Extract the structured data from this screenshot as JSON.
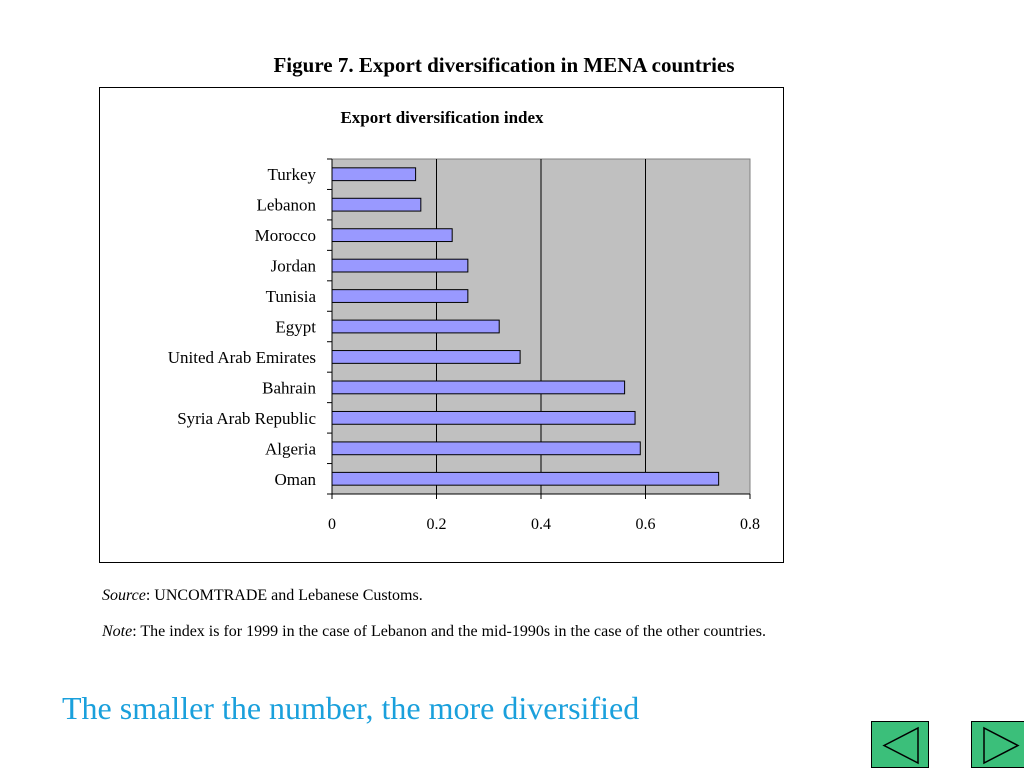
{
  "figure_title": "Figure 7.  Export diversification in MENA countries",
  "source": {
    "label": "Source",
    "text": ":  UNCOMTRADE and Lebanese Customs."
  },
  "note": {
    "label": "Note",
    "text": ": The index is for 1999 in the case of Lebanon and the mid-1990s in the case of the other countries."
  },
  "caption": "The smaller the number, the more diversified",
  "colors": {
    "bar_fill": "#9999ff",
    "plot_bg": "#c0c0c0",
    "caption": "#1aa0dc",
    "nav_button": "#3bbf7a"
  },
  "nav": {
    "prev_icon": "left-triangle-icon",
    "next_icon": "right-triangle-icon"
  },
  "chart_data": {
    "type": "bar",
    "orientation": "horizontal",
    "title": "Export diversification index",
    "categories": [
      "Turkey",
      "Lebanon",
      "Morocco",
      "Jordan",
      "Tunisia",
      "Egypt",
      "United Arab Emirates",
      "Bahrain",
      "Syria Arab Republic",
      "Algeria",
      "Oman"
    ],
    "values": [
      0.16,
      0.17,
      0.23,
      0.26,
      0.26,
      0.32,
      0.36,
      0.56,
      0.58,
      0.59,
      0.74
    ],
    "xlim": [
      0,
      0.8
    ],
    "xticks": [
      "0",
      "0.2",
      "0.4",
      "0.6",
      "0.8"
    ],
    "grid": true,
    "legend": "none"
  }
}
